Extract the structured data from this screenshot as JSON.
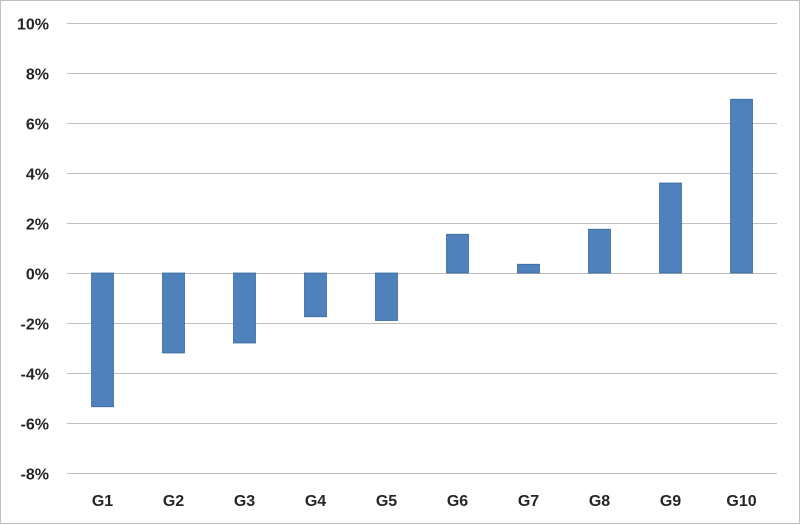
{
  "chart_data": {
    "type": "bar",
    "title": "",
    "xlabel": "",
    "ylabel": "",
    "categories": [
      "G1",
      "G2",
      "G3",
      "G4",
      "G5",
      "G6",
      "G7",
      "G8",
      "G9",
      "G10"
    ],
    "values": [
      -5.35,
      -3.2,
      -2.8,
      -1.75,
      -1.9,
      1.55,
      0.35,
      1.75,
      3.6,
      6.95
    ],
    "ylim": [
      -8,
      10
    ],
    "yticks": [
      10,
      8,
      6,
      4,
      2,
      0,
      -2,
      -4,
      -6,
      -8
    ],
    "ytick_labels": [
      "10%",
      "8%",
      "6%",
      "4%",
      "2%",
      "0%",
      "-2%",
      "-4%",
      "-6%",
      "-8%"
    ],
    "grid": true,
    "legend": "none",
    "colors": {
      "bar": "#4f81bd",
      "bar_edge": "#3c6a9e",
      "grid": "#bfbfbf",
      "text": "#262626"
    }
  }
}
